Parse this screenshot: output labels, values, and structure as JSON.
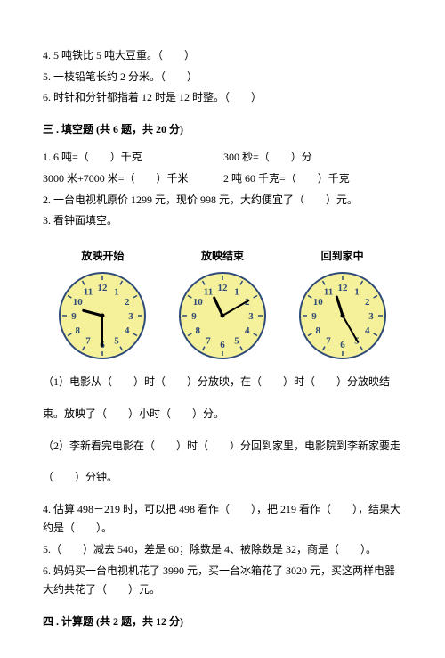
{
  "questions_top": [
    "4. 5 吨铁比 5 吨大豆重。（　　）",
    "5. 一枝铅笔长约 2 分米。（　　）",
    "6. 时针和分针都指着 12 时是 12 时整。（　　）"
  ],
  "section3": {
    "header": "三 . 填空题 (共 6 题，共 20 分)",
    "q1a": "1. 6 吨=（　　）千克",
    "q1b": "300 秒=（　　）分",
    "q1c": "3000 米+7000 米=（　　）千米",
    "q1d": "2 吨 60 千克=（　　）千克",
    "q2": "2. 一台电视机原价 1299 元，现价 998 元，大约便宜了（　　）元。",
    "q3": "3. 看钟面填空。",
    "clocks": [
      {
        "title": "放映开始",
        "hour": 9,
        "minute": 30
      },
      {
        "title": "放映结束",
        "hour": 11,
        "minute": 10
      },
      {
        "title": "回到家中",
        "hour": 11,
        "minute": 25
      }
    ],
    "q3_sub1": "（1）电影从（　　）时（　　）分放映，在（　　）时（　　）分放映结",
    "q3_sub1b": "束。放映了（　　）小时（　　）分。",
    "q3_sub2": "（2）李新看完电影在（　　）时（　　）分回到家里，电影院到李新家要走",
    "q3_sub2b": "（　　）分钟。",
    "q4": "4. 估算 498－219 时，可以把 498 看作（　　），把 219 看作（　　），结果大约是（　　）。",
    "q5": "5.（　　）减去 540，差是 60；除数是 4、被除数是 32，商是（　　）。",
    "q6": "6. 妈妈买一台电视机花了 3990 元，买一台冰箱花了 3020 元，买这两样电器大约共花了（　　）元。"
  },
  "section4": {
    "header": "四 . 计算题 (共 2 题，共 12 分)"
  },
  "clock_style": {
    "face_fill": "#f5f09a",
    "face_stroke": "#2e4a77",
    "number_color": "#2e4a77",
    "hand_color": "#000000",
    "radius": 48,
    "number_fontsize": 11,
    "hour_hand_len": 22,
    "minute_hand_len": 34
  }
}
